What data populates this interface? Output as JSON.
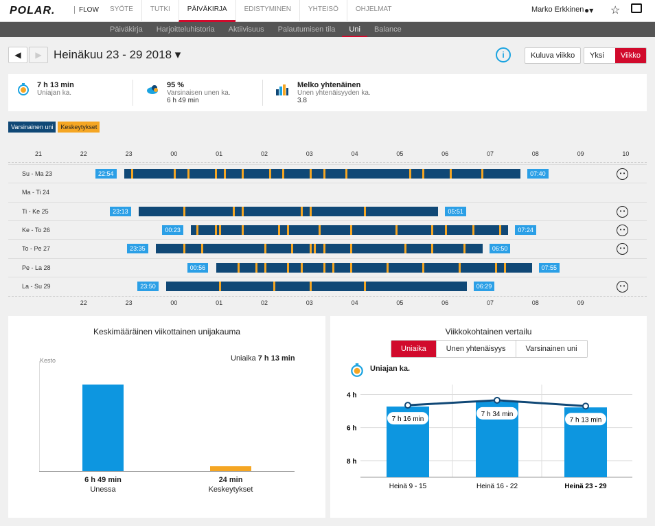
{
  "nav": {
    "logo": "POLAR.",
    "logo_sub": "FLOW",
    "items": [
      {
        "label": "SYÖTE",
        "active": false
      },
      {
        "label": "TUTKI",
        "active": false
      },
      {
        "label": "PÄIVÄKIRJA",
        "active": true
      },
      {
        "label": "EDISTYMINEN",
        "active": false
      },
      {
        "label": "YHTEISÖ",
        "active": false
      },
      {
        "label": "OHJELMAT",
        "active": false
      }
    ],
    "user": "Marko Erkkinen"
  },
  "subnav": {
    "items": [
      {
        "label": "Päiväkirja",
        "active": false
      },
      {
        "label": "Harjoitteluhistoria",
        "active": false
      },
      {
        "label": "Aktiivisuus",
        "active": false
      },
      {
        "label": "Palautumisen tila",
        "active": false
      },
      {
        "label": "Uni",
        "active": true
      },
      {
        "label": "Balance",
        "active": false
      }
    ]
  },
  "header": {
    "title": "Heinäkuu 23 - 29 2018 ▾",
    "week_button": "Kuluva viikko",
    "toggle": [
      {
        "label": "Yksi yö",
        "on": false
      },
      {
        "label": "Viikko",
        "on": true
      }
    ]
  },
  "summary": [
    {
      "value": "7 h 13 min",
      "label": "Uniajan ka.",
      "extra": ""
    },
    {
      "value": "95 %",
      "label": "Varsinaisen unen ka.",
      "extra": "6 h 49 min"
    },
    {
      "value": "Melko yhtenäinen",
      "label": "Unen yhtenäisyyden ka.",
      "extra": "3.8"
    }
  ],
  "legend": [
    {
      "label": "Varsinainen uni",
      "color": "#104876"
    },
    {
      "label": "Keskeytykset",
      "color": "#f5a623"
    }
  ],
  "timeline": {
    "top_hours": [
      "21",
      "22",
      "23",
      "00",
      "01",
      "02",
      "03",
      "04",
      "05",
      "06",
      "07",
      "08",
      "09",
      "10"
    ],
    "bottom_hours": [
      "22",
      "23",
      "00",
      "01",
      "02",
      "03",
      "04",
      "05",
      "06",
      "07",
      "08",
      "09"
    ],
    "rows": [
      {
        "label": "Su - Ma 23",
        "start": "22:54",
        "end": "07:40",
        "s": 22.9,
        "e": 31.67,
        "face": true,
        "gaps": [
          23.05,
          24.0,
          24.3,
          24.9,
          25.1,
          25.5,
          26.1,
          26.4,
          27.0,
          27.3,
          27.8,
          29.2,
          29.5,
          30.1,
          30.8
        ]
      },
      {
        "label": "Ma - Ti 24",
        "start": "",
        "end": "",
        "s": null,
        "e": null,
        "face": false,
        "gaps": []
      },
      {
        "label": "Ti - Ke 25",
        "start": "23:13",
        "end": "05:51",
        "s": 23.22,
        "e": 29.85,
        "face": true,
        "gaps": [
          24.2,
          25.3,
          25.5,
          26.8,
          27.0,
          28.2
        ]
      },
      {
        "label": "Ke - To 26",
        "start": "00:23",
        "end": "07:24",
        "s": 24.38,
        "e": 31.4,
        "face": true,
        "gaps": [
          24.5,
          24.9,
          25.0,
          25.5,
          26.3,
          26.5,
          27.2,
          27.9,
          28.9,
          29.7,
          30.0,
          30.6,
          31.2
        ]
      },
      {
        "label": "To - Pe 27",
        "start": "23:35",
        "end": "06:50",
        "s": 23.6,
        "e": 30.83,
        "face": true,
        "gaps": [
          24.2,
          24.6,
          26.0,
          26.6,
          27.0,
          27.1,
          27.3,
          27.9,
          29.1,
          29.7,
          30.4
        ]
      },
      {
        "label": "Pe - La 28",
        "start": "00:56",
        "end": "07:55",
        "s": 24.93,
        "e": 31.92,
        "face": false,
        "gaps": [
          25.4,
          25.8,
          26.0,
          26.5,
          26.8,
          27.3,
          27.5,
          27.9,
          28.7,
          29.5,
          30.3,
          31.1,
          31.3
        ]
      },
      {
        "label": "La - Su 29",
        "start": "23:50",
        "end": "06:29",
        "s": 23.83,
        "e": 30.48,
        "face": true,
        "gaps": [
          25.0,
          26.2,
          27.0,
          28.2
        ]
      }
    ]
  },
  "left_panel": {
    "title": "Keskimääräinen viikottainen unijakauma",
    "axis_label": "Kesto",
    "total_label": "Uniaika",
    "total_value": "7 h 13 min",
    "bars": [
      {
        "value_label": "6 h 49 min",
        "label": "Unessa",
        "color": "#0d96e0",
        "minutes": 409
      },
      {
        "value_label": "24 min",
        "label": "Keskeytykset",
        "color": "#f5a623",
        "minutes": 24
      }
    ]
  },
  "right_panel": {
    "title": "Viikkokohtainen vertailu",
    "tabs": [
      {
        "label": "Uniaika",
        "on": true
      },
      {
        "label": "Unen yhtenäisyys",
        "on": false
      },
      {
        "label": "Varsinainen uni",
        "on": false
      }
    ],
    "metric_label": "Uniajan ka.",
    "y_ticks": [
      "8 h",
      "6 h",
      "4 h"
    ]
  },
  "chart_data": {
    "type": "bar",
    "title": "Viikkokohtainen vertailu",
    "categories": [
      "Heinä 9 - 15",
      "Heinä 16 - 22",
      "Heinä 23 - 29"
    ],
    "series": [
      {
        "name": "Uniajan ka.",
        "values": [
          7.27,
          7.57,
          7.22
        ],
        "labels": [
          "7 h 16 min",
          "7 h 34 min",
          "7 h 13 min"
        ]
      }
    ],
    "ylim": [
      3,
      8.6
    ],
    "y_ticks": [
      4,
      6,
      8
    ],
    "colors": {
      "bar": "#0d96e0",
      "line": "#104876"
    }
  }
}
